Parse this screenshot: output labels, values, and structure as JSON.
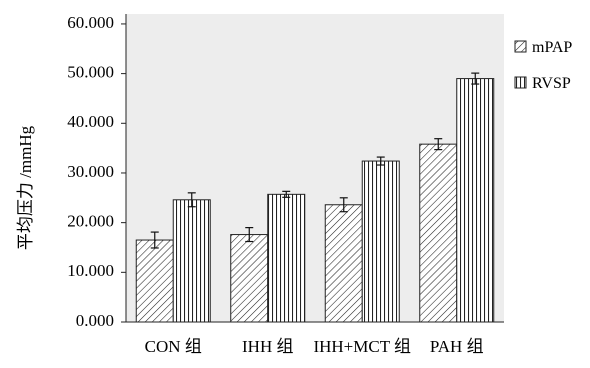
{
  "chart_data": {
    "type": "bar",
    "ylabel": "平均压力 /mmHg",
    "xlabel": "",
    "categories": [
      "CON 组",
      "IHH 组",
      "IHH+MCT 组",
      "PAH 组"
    ],
    "series": [
      {
        "name": "mPAP",
        "values": [
          16.5,
          17.6,
          23.6,
          35.8
        ],
        "errors": [
          1.6,
          1.4,
          1.4,
          1.1
        ],
        "pattern": "diagonal-hatch"
      },
      {
        "name": "RVSP",
        "values": [
          24.6,
          25.7,
          32.4,
          49.0
        ],
        "errors": [
          1.4,
          0.6,
          0.8,
          1.1
        ],
        "pattern": "vertical-hatch"
      }
    ],
    "yticks": [
      "0.000",
      "10.000",
      "20.000",
      "30.000",
      "40.000",
      "50.000",
      "60.000"
    ],
    "ylim": [
      0,
      62
    ],
    "legend_position": "top-right",
    "plot_background": "#ededed",
    "grid": false
  }
}
